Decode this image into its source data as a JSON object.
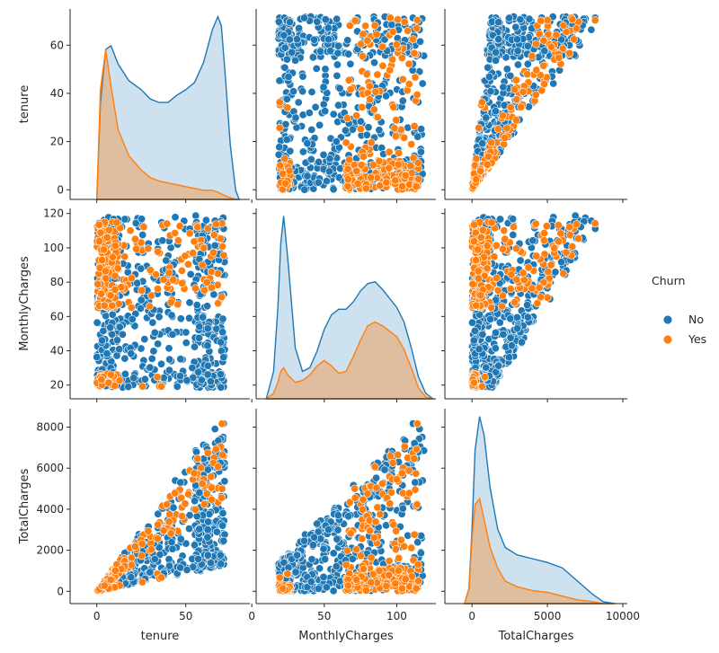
{
  "chart_data": {
    "type": "pairplot",
    "variables": [
      "tenure",
      "MonthlyCharges",
      "TotalCharges"
    ],
    "hue": "Churn",
    "legend": {
      "title": "Churn",
      "placement": "right",
      "entries": [
        {
          "label": "No",
          "color": "#1f77b4"
        },
        {
          "label": "Yes",
          "color": "#ff7f0e"
        }
      ]
    },
    "axes": {
      "tenure": {
        "label": "tenure",
        "range": [
          -15,
          86
        ],
        "ticks": [
          0,
          50
        ],
        "y_ticks": [
          0,
          20,
          40,
          60
        ]
      },
      "MonthlyCharges": {
        "label": "MonthlyCharges",
        "range": [
          3,
          127
        ],
        "ticks": [
          0,
          50,
          100
        ],
        "y_ticks": [
          20,
          40,
          60,
          80,
          100,
          120
        ]
      },
      "TotalCharges": {
        "label": "TotalCharges",
        "range": [
          -1800,
          10300
        ],
        "ticks": [
          0,
          5000,
          10000
        ],
        "y_ticks": [
          0,
          2000,
          4000,
          6000,
          8000
        ]
      }
    },
    "diagonal_kde": {
      "tenure": {
        "x": [
          0,
          2,
          5,
          8,
          12,
          18,
          25,
          30,
          35,
          40,
          45,
          50,
          55,
          60,
          65,
          68,
          70,
          72,
          75,
          78,
          80
        ],
        "No": [
          0.0,
          0.52,
          0.82,
          0.84,
          0.74,
          0.65,
          0.6,
          0.55,
          0.53,
          0.53,
          0.57,
          0.6,
          0.64,
          0.75,
          0.93,
          1.0,
          0.95,
          0.7,
          0.3,
          0.05,
          0.0
        ],
        "Yes": [
          0.0,
          0.6,
          0.82,
          0.62,
          0.38,
          0.24,
          0.16,
          0.12,
          0.1,
          0.09,
          0.08,
          0.07,
          0.06,
          0.05,
          0.05,
          0.04,
          0.03,
          0.02,
          0.01,
          0.0,
          0.0
        ]
      },
      "MonthlyCharges": {
        "x": [
          10,
          15,
          18,
          20,
          22,
          25,
          30,
          35,
          40,
          45,
          50,
          55,
          60,
          65,
          70,
          75,
          80,
          85,
          90,
          95,
          100,
          105,
          110,
          115,
          120,
          125
        ],
        "No": [
          0.0,
          0.15,
          0.5,
          0.85,
          1.0,
          0.75,
          0.28,
          0.15,
          0.17,
          0.26,
          0.38,
          0.46,
          0.49,
          0.49,
          0.53,
          0.59,
          0.63,
          0.64,
          0.6,
          0.55,
          0.5,
          0.42,
          0.28,
          0.12,
          0.03,
          0.0
        ],
        "Yes": [
          0.0,
          0.03,
          0.09,
          0.15,
          0.17,
          0.13,
          0.09,
          0.1,
          0.13,
          0.18,
          0.21,
          0.18,
          0.14,
          0.15,
          0.23,
          0.32,
          0.4,
          0.42,
          0.4,
          0.37,
          0.34,
          0.27,
          0.17,
          0.06,
          0.01,
          0.0
        ]
      },
      "TotalCharges": {
        "x": [
          -500,
          -200,
          0,
          200,
          500,
          800,
          1200,
          1700,
          2200,
          3000,
          4000,
          5000,
          6000,
          7000,
          8000,
          8700,
          9500
        ],
        "No": [
          0.0,
          0.08,
          0.4,
          0.82,
          1.0,
          0.9,
          0.62,
          0.4,
          0.3,
          0.26,
          0.24,
          0.22,
          0.19,
          0.12,
          0.05,
          0.01,
          0.0
        ],
        "Yes": [
          0.0,
          0.08,
          0.35,
          0.53,
          0.56,
          0.45,
          0.3,
          0.19,
          0.12,
          0.09,
          0.07,
          0.06,
          0.04,
          0.02,
          0.01,
          0.0,
          0.0
        ]
      }
    }
  }
}
